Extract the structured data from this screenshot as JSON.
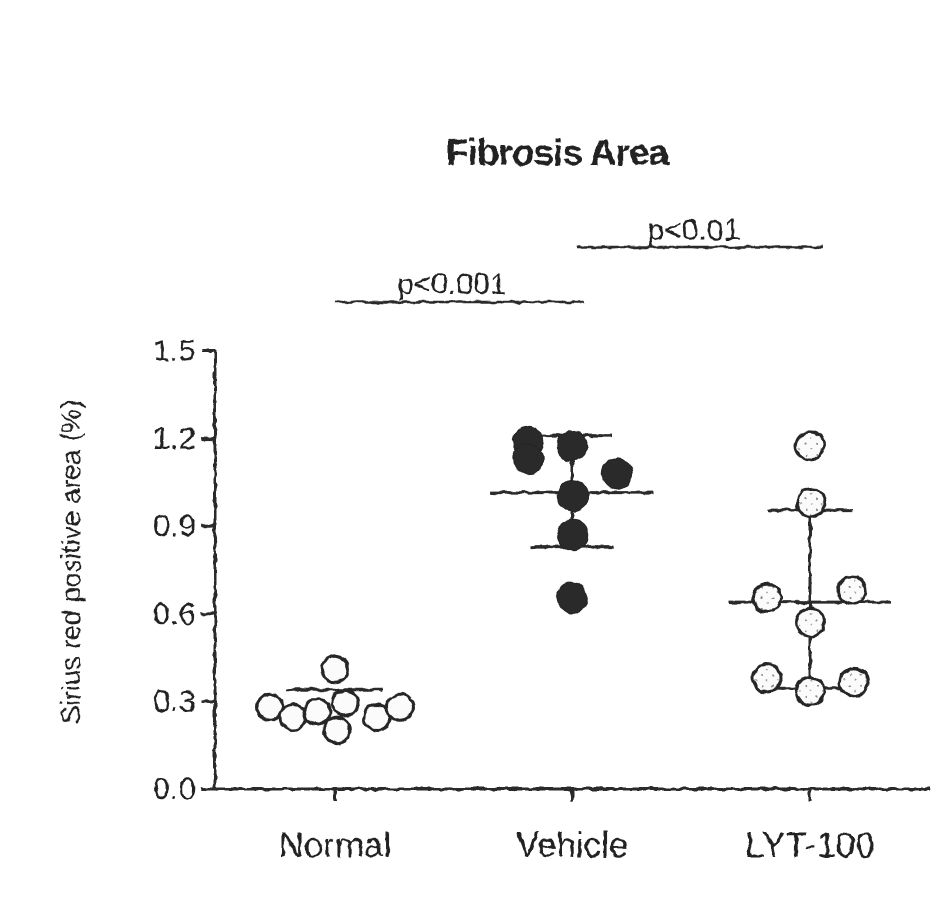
{
  "title": "Fibrosis Area",
  "y_axis": {
    "label": "Sirius red positive area (%)",
    "tick_labels": [
      "0.0",
      "0.3",
      "0.6",
      "0.9",
      "1.2",
      "1.5"
    ]
  },
  "x_axis": {
    "categories": [
      "Normal",
      "Vehicle",
      "LYT-100"
    ]
  },
  "colors": {
    "ink": "#222222",
    "axis": "#2a2a2a",
    "filled_dot": "#2b2b2b",
    "open_dot_fill": "#fbfbfb",
    "dot_stroke": "#282828"
  },
  "chart_data": {
    "type": "scatter",
    "title": "Fibrosis Area",
    "xlabel": "",
    "ylabel": "Sirius red positive area (%)",
    "ylim": [
      0,
      1.5
    ],
    "yticks": [
      0,
      0.3,
      0.6,
      0.9,
      1.2,
      1.5
    ],
    "grid": false,
    "legend": "none",
    "categories": [
      "Normal",
      "Vehicle",
      "LYT-100"
    ],
    "series": [
      {
        "name": "Normal",
        "marker": "open-circle",
        "points": [
          {
            "v": 0.41,
            "dx": 0
          },
          {
            "v": 0.28,
            "dx": -65
          },
          {
            "v": 0.245,
            "dx": -42
          },
          {
            "v": 0.265,
            "dx": -18
          },
          {
            "v": 0.295,
            "dx": 10
          },
          {
            "v": 0.2,
            "dx": 2
          },
          {
            "v": 0.245,
            "dx": 42
          },
          {
            "v": 0.28,
            "dx": 65
          }
        ],
        "mean": 0.34,
        "sd_upper": null,
        "sd_lower": null
      },
      {
        "name": "Vehicle",
        "marker": "filled-circle",
        "points": [
          {
            "v": 1.19,
            "dx": -44
          },
          {
            "v": 1.13,
            "dx": -44
          },
          {
            "v": 1.175,
            "dx": 0
          },
          {
            "v": 1.08,
            "dx": 45
          },
          {
            "v": 1.005,
            "dx": 1
          },
          {
            "v": 0.87,
            "dx": 1
          },
          {
            "v": 0.655,
            "dx": 0
          }
        ],
        "mean": 1.015,
        "sd_upper": 1.21,
        "sd_lower": 0.83
      },
      {
        "name": "LYT-100",
        "marker": "open-circle-speckled",
        "points": [
          {
            "v": 1.175,
            "dx": 0
          },
          {
            "v": 0.98,
            "dx": 1
          },
          {
            "v": 0.655,
            "dx": -43
          },
          {
            "v": 0.68,
            "dx": 42
          },
          {
            "v": 0.57,
            "dx": 0
          },
          {
            "v": 0.38,
            "dx": -43
          },
          {
            "v": 0.335,
            "dx": 0
          },
          {
            "v": 0.365,
            "dx": 44
          }
        ],
        "mean": 0.64,
        "sd_upper": 0.955,
        "sd_lower": 0.345
      }
    ],
    "annotations": [
      {
        "label": "p<0.001",
        "between": [
          "Normal",
          "Vehicle"
        ]
      },
      {
        "label": "p<0.01",
        "between": [
          "Vehicle",
          "LYT-100"
        ]
      }
    ]
  }
}
